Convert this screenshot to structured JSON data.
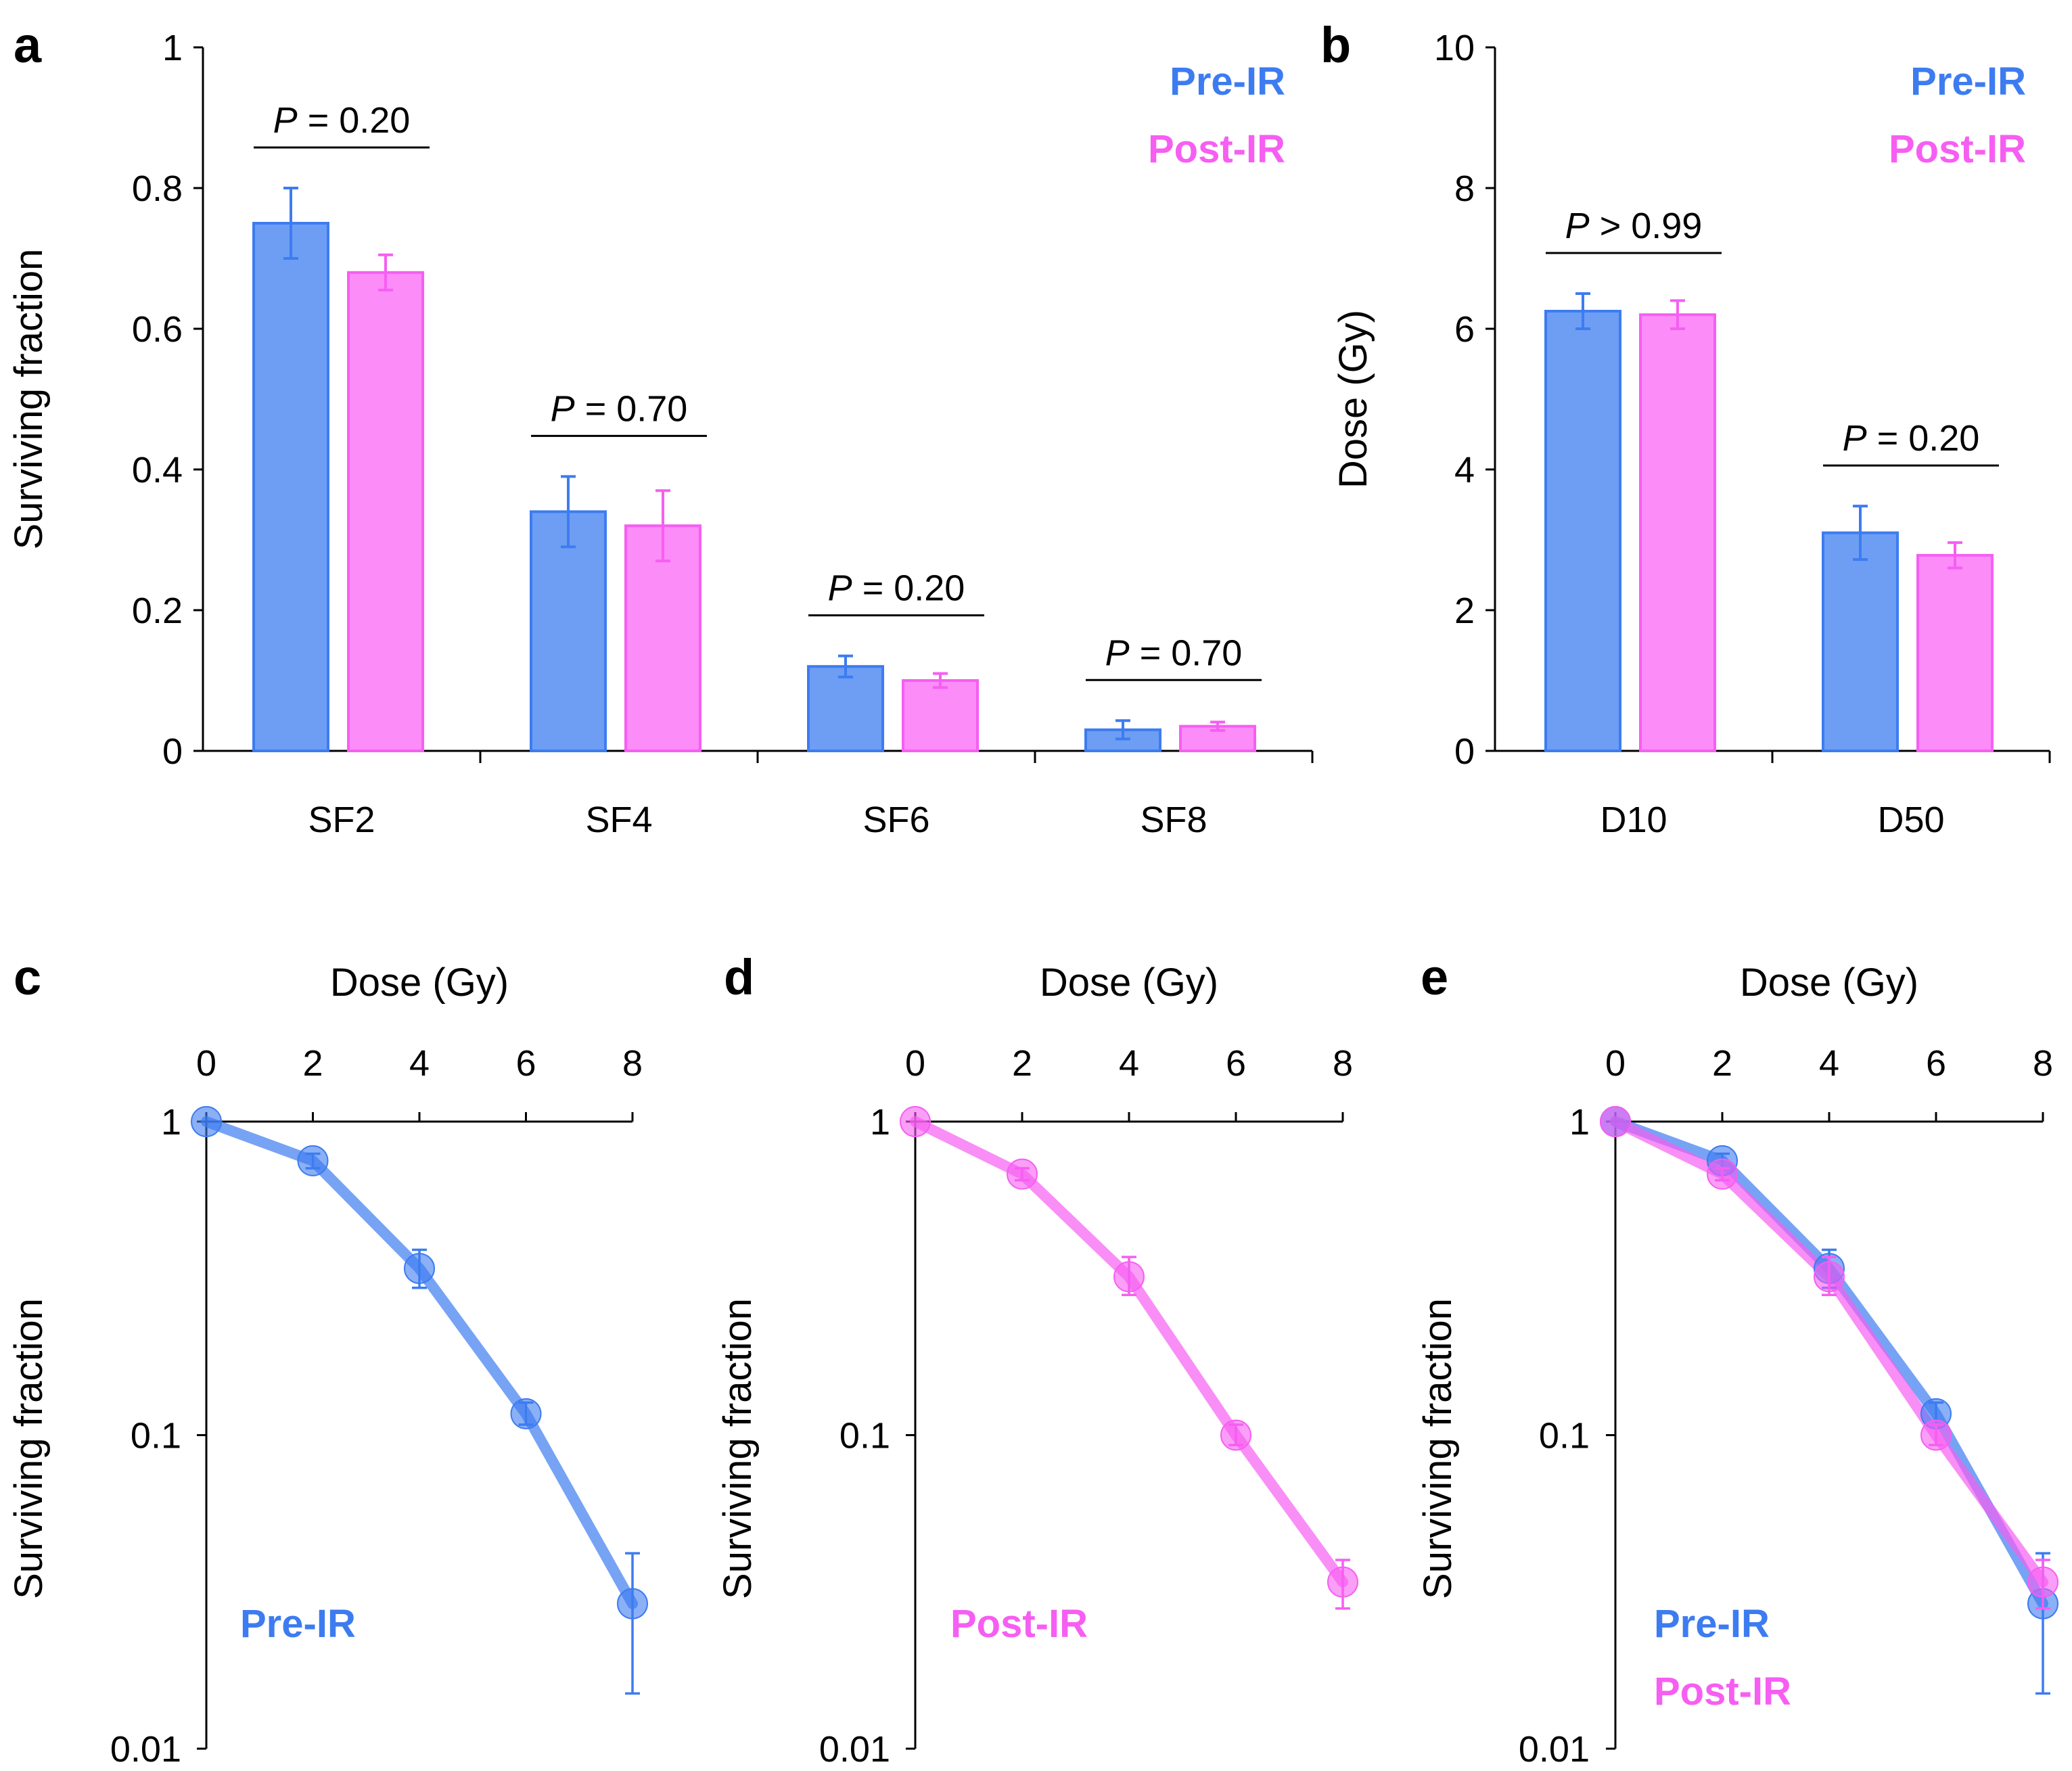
{
  "colors": {
    "pre": "#3d7cf0",
    "post": "#f65ef2",
    "axis": "#000000"
  },
  "chart_data": [
    {
      "panel": "a",
      "type": "bar",
      "categories": [
        "SF2",
        "SF4",
        "SF6",
        "SF8"
      ],
      "ylabel": "Surviving fraction",
      "ylim": [
        0,
        1
      ],
      "yticks": [
        "0",
        "0.2",
        "0.4",
        "0.6",
        "0.8",
        "1"
      ],
      "legend": [
        "Pre-IR",
        "Post-IR"
      ],
      "series": [
        {
          "name": "Pre-IR",
          "values": [
            0.75,
            0.34,
            0.12,
            0.03
          ],
          "errors": [
            0.05,
            0.05,
            0.015,
            0.013
          ]
        },
        {
          "name": "Post-IR",
          "values": [
            0.68,
            0.32,
            0.1,
            0.035
          ],
          "errors": [
            0.025,
            0.05,
            0.01,
            0.006
          ]
        }
      ],
      "pvalues": [
        "= 0.20",
        "= 0.70",
        "= 0.20",
        "= 0.70"
      ]
    },
    {
      "panel": "b",
      "type": "bar",
      "categories": [
        "D10",
        "D50"
      ],
      "ylabel": "Dose (Gy)",
      "ylim": [
        0,
        10
      ],
      "yticks": [
        "0",
        "2",
        "4",
        "6",
        "8",
        "10"
      ],
      "legend": [
        "Pre-IR",
        "Post-IR"
      ],
      "series": [
        {
          "name": "Pre-IR",
          "values": [
            6.25,
            3.1
          ],
          "errors": [
            0.25,
            0.38
          ]
        },
        {
          "name": "Post-IR",
          "values": [
            6.2,
            2.78
          ],
          "errors": [
            0.2,
            0.18
          ]
        }
      ],
      "pvalues": [
        "> 0.99",
        "= 0.20"
      ]
    },
    {
      "panel": "c",
      "type": "line",
      "xlabel": "Dose (Gy)",
      "ylabel": "Surviving fraction",
      "x": [
        0,
        2,
        4,
        6,
        8
      ],
      "xticks": [
        "0",
        "2",
        "4",
        "6",
        "8"
      ],
      "yscale": "log",
      "ylim": [
        0.01,
        1
      ],
      "yticks": [
        "0.01",
        "0.1",
        "1"
      ],
      "legend": [
        "Pre-IR"
      ],
      "series": [
        {
          "name": "Pre-IR",
          "values": [
            1,
            0.75,
            0.34,
            0.117,
            0.029
          ],
          "err_low": [
            1,
            0.71,
            0.295,
            0.108,
            0.015
          ],
          "err_high": [
            1,
            0.79,
            0.39,
            0.127,
            0.042
          ]
        }
      ]
    },
    {
      "panel": "d",
      "type": "line",
      "xlabel": "Dose (Gy)",
      "ylabel": "Surviving fraction",
      "x": [
        0,
        2,
        4,
        6,
        8
      ],
      "xticks": [
        "0",
        "2",
        "4",
        "6",
        "8"
      ],
      "yscale": "log",
      "ylim": [
        0.01,
        1
      ],
      "yticks": [
        "0.01",
        "0.1",
        "1"
      ],
      "legend": [
        "Post-IR"
      ],
      "series": [
        {
          "name": "Post-IR",
          "values": [
            1,
            0.68,
            0.32,
            0.1,
            0.034
          ],
          "err_low": [
            1,
            0.65,
            0.28,
            0.093,
            0.028
          ],
          "err_high": [
            1,
            0.71,
            0.37,
            0.108,
            0.04
          ]
        }
      ]
    },
    {
      "panel": "e",
      "type": "line",
      "xlabel": "Dose (Gy)",
      "ylabel": "Surviving fraction",
      "x": [
        0,
        2,
        4,
        6,
        8
      ],
      "xticks": [
        "0",
        "2",
        "4",
        "6",
        "8"
      ],
      "yscale": "log",
      "ylim": [
        0.01,
        1
      ],
      "yticks": [
        "0.01",
        "0.1",
        "1"
      ],
      "legend": [
        "Pre-IR",
        "Post-IR"
      ],
      "series": [
        {
          "name": "Pre-IR",
          "values": [
            1,
            0.75,
            0.34,
            0.117,
            0.029
          ],
          "err_low": [
            1,
            0.71,
            0.295,
            0.108,
            0.015
          ],
          "err_high": [
            1,
            0.79,
            0.39,
            0.127,
            0.042
          ]
        },
        {
          "name": "Post-IR",
          "values": [
            1,
            0.68,
            0.32,
            0.1,
            0.034
          ],
          "err_low": [
            1,
            0.65,
            0.28,
            0.093,
            0.028
          ],
          "err_high": [
            1,
            0.71,
            0.37,
            0.108,
            0.04
          ]
        }
      ]
    }
  ]
}
